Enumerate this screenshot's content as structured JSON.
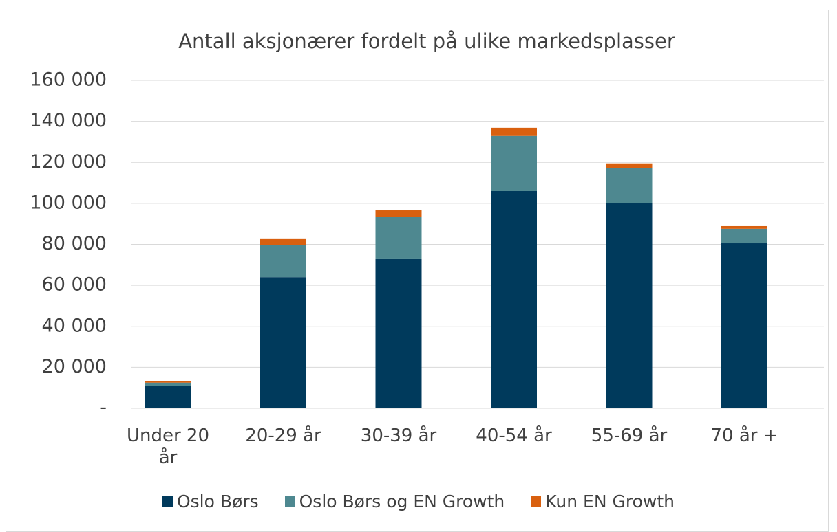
{
  "chart_data": {
    "type": "bar",
    "stacked": true,
    "title": "Antall aksjonærer fordelt på ulike markedsplasser",
    "categories": [
      "Under 20 år",
      "20-29 år",
      "30-39 år",
      "40-54 år",
      "55-69 år",
      "70 år +"
    ],
    "series": [
      {
        "name": "Oslo Børs",
        "color": "#003a5c",
        "values": [
          11000,
          64000,
          72800,
          106000,
          100000,
          80500
        ]
      },
      {
        "name": "Oslo Børs og EN Growth",
        "color": "#4e8890",
        "values": [
          1500,
          15500,
          20500,
          26900,
          17400,
          7100
        ]
      },
      {
        "name": "Kun EN Growth",
        "color": "#d9600f",
        "values": [
          700,
          3400,
          3300,
          4000,
          2100,
          1300
        ]
      }
    ],
    "ylim": [
      0,
      160000
    ],
    "yticks": [
      {
        "value": 0,
        "label": "-"
      },
      {
        "value": 20000,
        "label": "20 000"
      },
      {
        "value": 40000,
        "label": "40 000"
      },
      {
        "value": 60000,
        "label": "60 000"
      },
      {
        "value": 80000,
        "label": "80 000"
      },
      {
        "value": 100000,
        "label": "100 000"
      },
      {
        "value": 120000,
        "label": "120 000"
      },
      {
        "value": 140000,
        "label": "140 000"
      },
      {
        "value": 160000,
        "label": "160 000"
      }
    ],
    "grid": true,
    "legend": "bottom"
  }
}
